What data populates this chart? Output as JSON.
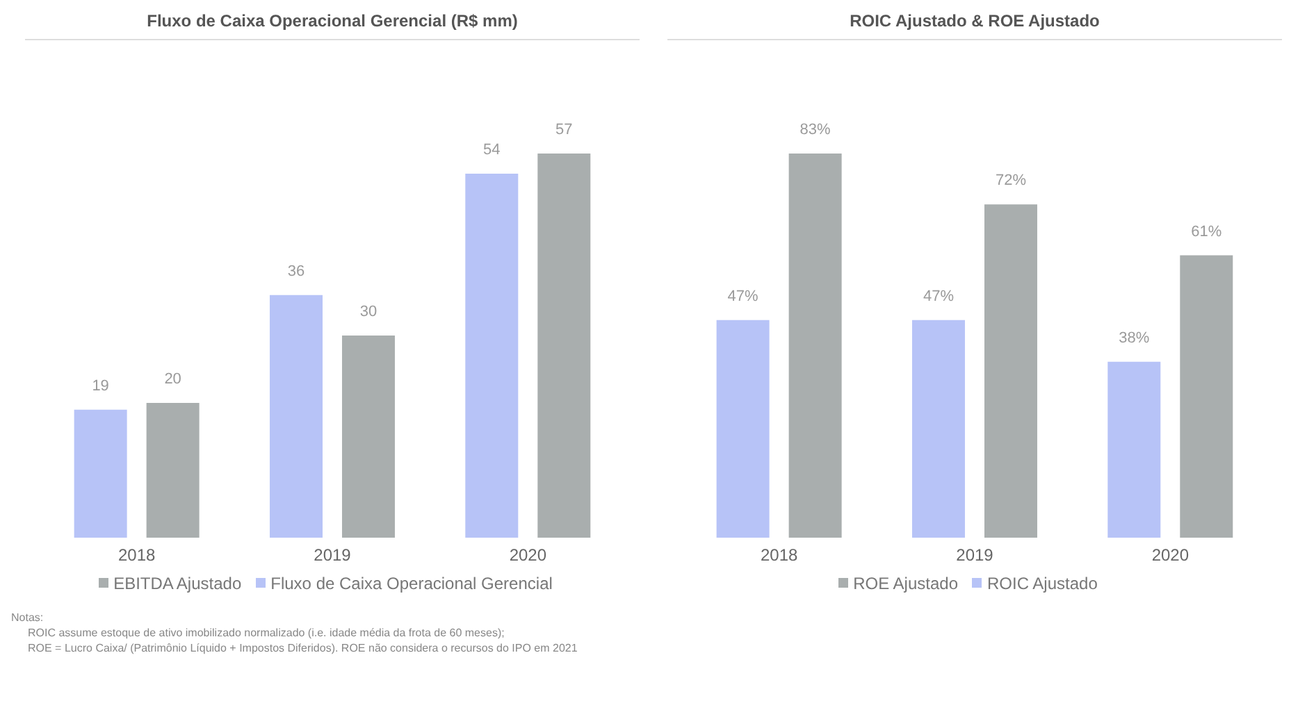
{
  "chart_data": [
    {
      "type": "bar",
      "title": "Fluxo de Caixa Operacional Gerencial (R$ mm)",
      "categories": [
        "2018",
        "2019",
        "2020"
      ],
      "series": [
        {
          "name": "Fluxo de Caixa Operacional Gerencial",
          "color": "#b7c3f7",
          "values": [
            19,
            36,
            54
          ]
        },
        {
          "name": "EBITDA Ajustado",
          "color": "#a9aeae",
          "values": [
            20,
            30,
            57
          ]
        }
      ],
      "data_labels": true,
      "legend": "bottom",
      "annotations": [
        "Notas:",
        "ROIC assume estoque de ativo imobilizado normalizado (i.e. idade média da frota de 60 meses);",
        "ROE = Lucro Caixa/ (Patrimônio Líquido + Impostos Diferidos). ROE não considera o recursos do IPO em 2021"
      ]
    },
    {
      "type": "bar",
      "title": "ROIC Ajustado & ROE Ajustado",
      "categories": [
        "2018",
        "2019",
        "2020"
      ],
      "series": [
        {
          "name": "ROIC Ajustado",
          "color": "#b7c3f7",
          "values": [
            47,
            47,
            38
          ],
          "value_labels": [
            "47%",
            "47%",
            "38%"
          ]
        },
        {
          "name": "ROE Ajustado",
          "color": "#a9aeae",
          "values": [
            83,
            72,
            61
          ],
          "value_labels": [
            "83%",
            "72%",
            "61%"
          ]
        }
      ],
      "legend": "bottom"
    }
  ]
}
